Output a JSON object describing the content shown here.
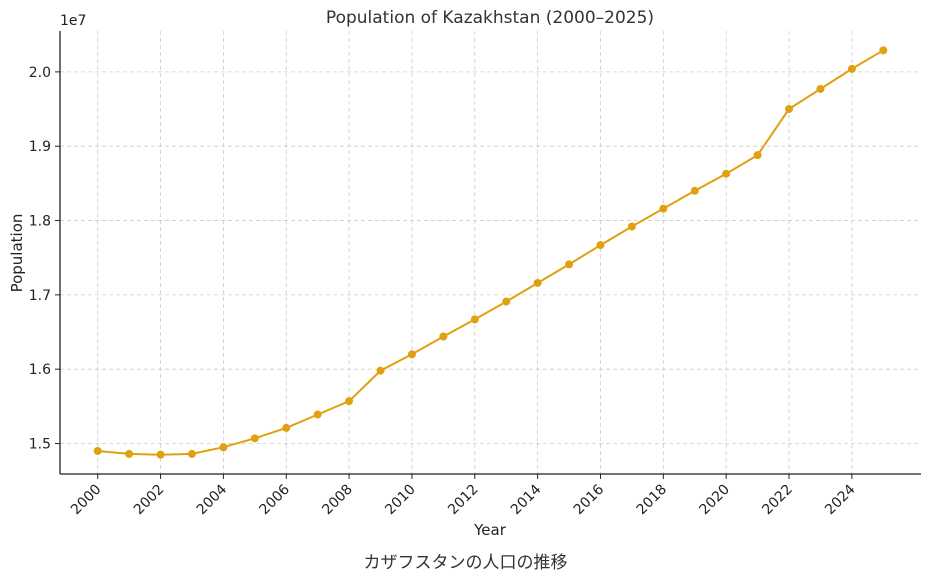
{
  "chart_data": {
    "type": "line",
    "title": "Population of Kazakhstan (2000–2025)",
    "xlabel": "Year",
    "ylabel": "Population",
    "y_offset_label": "1e7",
    "x": [
      2000,
      2001,
      2002,
      2003,
      2004,
      2005,
      2006,
      2007,
      2008,
      2009,
      2010,
      2011,
      2012,
      2013,
      2014,
      2015,
      2016,
      2017,
      2018,
      2019,
      2020,
      2021,
      2022,
      2023,
      2024,
      2025
    ],
    "series": [
      {
        "values": [
          14900000,
          14860000,
          14850000,
          14860000,
          14950000,
          15070000,
          15210000,
          15390000,
          15570000,
          15980000,
          16200000,
          16440000,
          16670000,
          16910000,
          17160000,
          17410000,
          17670000,
          17920000,
          18160000,
          18400000,
          18630000,
          18880000,
          19500000,
          19770000,
          20040000,
          20290000
        ]
      }
    ],
    "x_ticks": [
      2000,
      2002,
      2004,
      2006,
      2008,
      2010,
      2012,
      2014,
      2016,
      2018,
      2020,
      2022,
      2024
    ],
    "y_ticks": [
      1.5,
      1.6,
      1.7,
      1.8,
      1.9,
      2.0
    ],
    "xlim": [
      1998.8,
      2026.2
    ],
    "ylim": [
      14590000,
      20550000
    ],
    "grid": true,
    "line_color": "#e0a010"
  },
  "caption": "カザフスタンの人口の推移"
}
